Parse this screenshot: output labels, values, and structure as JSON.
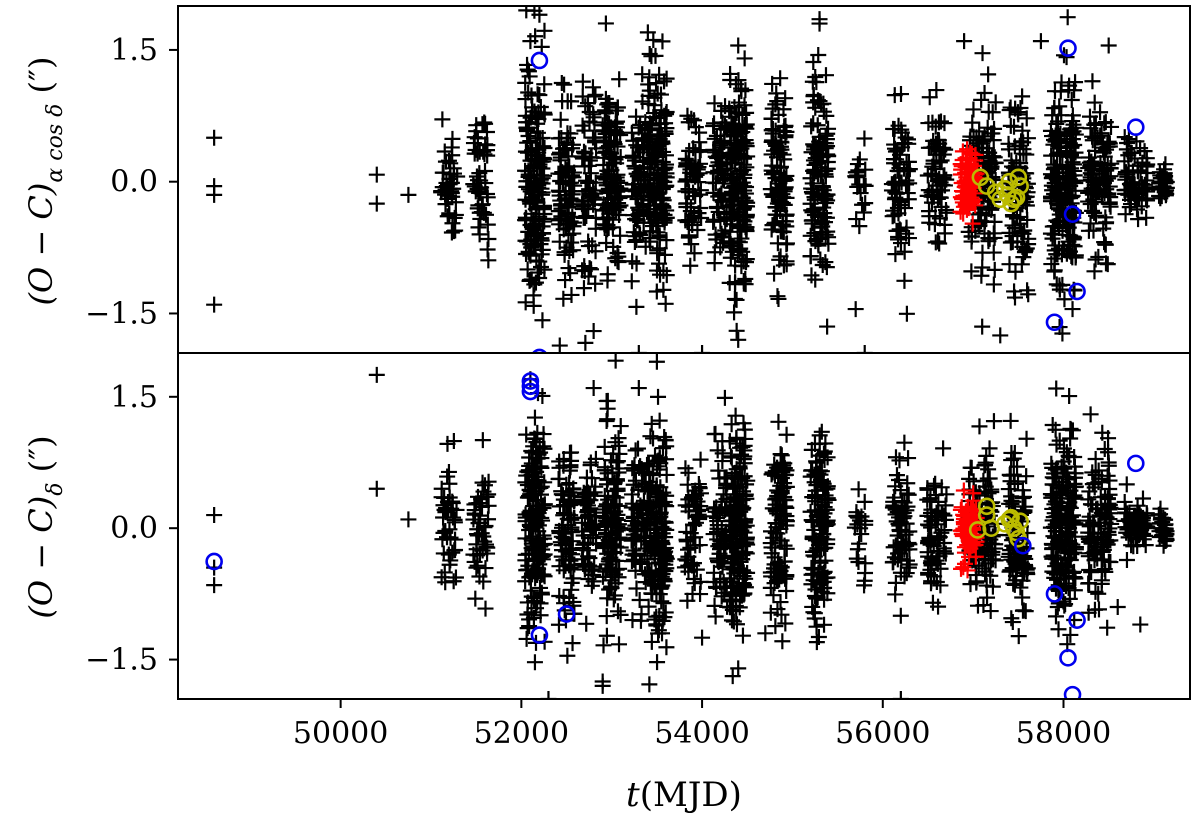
{
  "chart_data": [
    {
      "type": "scatter",
      "panel": "top",
      "ylabel": "(O − C)α cos δ (″)",
      "ylabel_parts": {
        "base": "(O − C)",
        "sub": "α cos δ",
        "unit": " (″)"
      },
      "xlim": [
        48200,
        59400
      ],
      "ylim": [
        -1.95,
        2.0
      ],
      "yticks": [
        1.5,
        0.0,
        -1.5
      ],
      "ytick_labels": [
        "1.5",
        "0.0",
        "−1.5"
      ],
      "grid": false,
      "series": [
        {
          "color": "#000000",
          "marker": "plus",
          "generator": {
            "isolated": [
              [
                48600,
                0.5
              ],
              [
                48600,
                -0.05
              ],
              [
                48600,
                -0.15
              ],
              [
                48600,
                -1.4
              ],
              [
                50400,
                0.08
              ],
              [
                50400,
                -0.25
              ],
              [
                50750,
                -0.15
              ],
              [
                55700,
                -1.45
              ],
              [
                55800,
                -1.95
              ],
              [
                52200,
                1.9
              ],
              [
                52100,
                1.6
              ],
              [
                53400,
                1.7
              ],
              [
                54400,
                1.55
              ],
              [
                55300,
                1.85
              ],
              [
                55300,
                1.8
              ],
              [
                57750,
                1.6
              ],
              [
                58500,
                1.55
              ],
              [
                56900,
                1.6
              ],
              [
                52800,
                -1.7
              ],
              [
                53300,
                -1.95
              ],
              [
                54000,
                -1.95
              ],
              [
                54400,
                -1.8
              ],
              [
                57100,
                -1.65
              ],
              [
                57300,
                -1.75
              ],
              [
                58100,
                -1.45
              ]
            ],
            "clusters": [
              {
                "x": 51200,
                "n": 45,
                "xs": 90,
                "s": 0.35
              },
              {
                "x": 51550,
                "n": 50,
                "xs": 90,
                "s": 0.45
              },
              {
                "x": 52150,
                "n": 180,
                "xs": 110,
                "s": 0.65
              },
              {
                "x": 52500,
                "n": 90,
                "xs": 90,
                "s": 0.55
              },
              {
                "x": 52750,
                "n": 70,
                "xs": 80,
                "s": 0.55
              },
              {
                "x": 53000,
                "n": 130,
                "xs": 100,
                "s": 0.55
              },
              {
                "x": 53300,
                "n": 70,
                "xs": 80,
                "s": 0.5
              },
              {
                "x": 53500,
                "n": 170,
                "xs": 110,
                "s": 0.6
              },
              {
                "x": 53900,
                "n": 60,
                "xs": 90,
                "s": 0.45
              },
              {
                "x": 54200,
                "n": 70,
                "xs": 80,
                "s": 0.5
              },
              {
                "x": 54400,
                "n": 180,
                "xs": 100,
                "s": 0.6
              },
              {
                "x": 54850,
                "n": 110,
                "xs": 90,
                "s": 0.55
              },
              {
                "x": 55300,
                "n": 130,
                "xs": 100,
                "s": 0.55
              },
              {
                "x": 55750,
                "n": 20,
                "xs": 60,
                "s": 0.3
              },
              {
                "x": 56200,
                "n": 70,
                "xs": 100,
                "s": 0.4
              },
              {
                "x": 56600,
                "n": 70,
                "xs": 110,
                "s": 0.4
              },
              {
                "x": 57100,
                "n": 130,
                "xs": 150,
                "s": 0.45
              },
              {
                "x": 57500,
                "n": 100,
                "xs": 110,
                "s": 0.5
              },
              {
                "x": 58000,
                "n": 200,
                "xs": 140,
                "s": 0.55
              },
              {
                "x": 58400,
                "n": 110,
                "xs": 130,
                "s": 0.4
              },
              {
                "x": 58800,
                "n": 70,
                "xs": 130,
                "s": 0.22
              },
              {
                "x": 59100,
                "n": 40,
                "xs": 45,
                "s": 0.1
              }
            ]
          }
        },
        {
          "color": "#ff0000",
          "marker": "plus",
          "generator": {
            "clusters": [
              {
                "x": 56950,
                "n": 80,
                "xs": 90,
                "s": 0.18
              }
            ]
          }
        },
        {
          "color": "#bbbb00",
          "marker": "circle",
          "points": [
            [
              57080,
              0.05
            ],
            [
              57150,
              -0.05
            ],
            [
              57250,
              -0.12
            ],
            [
              57350,
              -0.08
            ],
            [
              57400,
              0.0
            ],
            [
              57420,
              -0.25
            ],
            [
              57480,
              -0.18
            ],
            [
              57500,
              0.05
            ],
            [
              57450,
              -0.2
            ],
            [
              57380,
              -0.15
            ],
            [
              57520,
              -0.05
            ],
            [
              57300,
              -0.2
            ]
          ]
        },
        {
          "color": "#0000ee",
          "marker": "circle",
          "points": [
            [
              52200,
              1.38
            ],
            [
              52200,
              -2.0
            ],
            [
              57900,
              -1.6
            ],
            [
              58050,
              1.52
            ],
            [
              58100,
              -0.37
            ],
            [
              58150,
              -1.25
            ],
            [
              58800,
              0.62
            ]
          ]
        }
      ]
    },
    {
      "type": "scatter",
      "panel": "bottom",
      "ylabel": "(O − C)δ (″)",
      "ylabel_parts": {
        "base": "(O − C)",
        "sub": "δ",
        "unit": " (″)"
      },
      "xlabel": "t(MJD)",
      "xlabel_parts": {
        "italic": "t",
        "rest": "(MJD)"
      },
      "xlim": [
        48200,
        59400
      ],
      "ylim": [
        -1.95,
        2.0
      ],
      "xticks": [
        50000,
        52000,
        54000,
        56000,
        58000
      ],
      "xtick_labels": [
        "50000",
        "52000",
        "54000",
        "56000",
        "58000"
      ],
      "yticks": [
        1.5,
        0.0,
        -1.5
      ],
      "ytick_labels": [
        "1.5",
        "0.0",
        "−1.5"
      ],
      "grid": false,
      "series": [
        {
          "color": "#000000",
          "marker": "plus",
          "generator": {
            "isolated": [
              [
                48600,
                0.15
              ],
              [
                48600,
                -0.45
              ],
              [
                48600,
                -0.65
              ],
              [
                50400,
                1.75
              ],
              [
                50400,
                0.45
              ],
              [
                50750,
                0.1
              ],
              [
                55800,
                0.3
              ],
              [
                55800,
                -0.6
              ],
              [
                52100,
                1.7
              ],
              [
                52800,
                1.6
              ],
              [
                53500,
                1.9
              ],
              [
                54000,
                -1.25
              ],
              [
                54400,
                -1.6
              ],
              [
                54700,
                -1.2
              ],
              [
                52900,
                -1.8
              ],
              [
                52900,
                -1.75
              ],
              [
                52300,
                -1.95
              ],
              [
                56200,
                -1.95
              ],
              [
                53300,
                1.6
              ],
              [
                58300,
                1.3
              ],
              [
                58500,
                0.75
              ],
              [
                58700,
                0.5
              ],
              [
                58600,
                -0.9
              ],
              [
                58850,
                -1.1
              ]
            ],
            "clusters": [
              {
                "x": 51200,
                "n": 45,
                "xs": 90,
                "s": 0.35
              },
              {
                "x": 51550,
                "n": 50,
                "xs": 90,
                "s": 0.4
              },
              {
                "x": 52150,
                "n": 180,
                "xs": 110,
                "s": 0.6
              },
              {
                "x": 52500,
                "n": 90,
                "xs": 90,
                "s": 0.55
              },
              {
                "x": 52750,
                "n": 70,
                "xs": 80,
                "s": 0.45
              },
              {
                "x": 53000,
                "n": 130,
                "xs": 100,
                "s": 0.5
              },
              {
                "x": 53300,
                "n": 70,
                "xs": 80,
                "s": 0.5
              },
              {
                "x": 53500,
                "n": 170,
                "xs": 110,
                "s": 0.6
              },
              {
                "x": 53900,
                "n": 60,
                "xs": 90,
                "s": 0.4
              },
              {
                "x": 54200,
                "n": 70,
                "xs": 80,
                "s": 0.45
              },
              {
                "x": 54400,
                "n": 180,
                "xs": 100,
                "s": 0.55
              },
              {
                "x": 54850,
                "n": 110,
                "xs": 90,
                "s": 0.5
              },
              {
                "x": 55300,
                "n": 130,
                "xs": 100,
                "s": 0.55
              },
              {
                "x": 55750,
                "n": 20,
                "xs": 60,
                "s": 0.3
              },
              {
                "x": 56200,
                "n": 70,
                "xs": 100,
                "s": 0.35
              },
              {
                "x": 56600,
                "n": 70,
                "xs": 110,
                "s": 0.4
              },
              {
                "x": 57100,
                "n": 130,
                "xs": 150,
                "s": 0.45
              },
              {
                "x": 57500,
                "n": 100,
                "xs": 110,
                "s": 0.45
              },
              {
                "x": 58000,
                "n": 200,
                "xs": 140,
                "s": 0.5
              },
              {
                "x": 58400,
                "n": 110,
                "xs": 130,
                "s": 0.4
              },
              {
                "x": 58800,
                "n": 70,
                "xs": 130,
                "s": 0.12
              },
              {
                "x": 59100,
                "n": 40,
                "xs": 45,
                "s": 0.08
              }
            ]
          }
        },
        {
          "color": "#ff0000",
          "marker": "plus",
          "generator": {
            "clusters": [
              {
                "x": 56950,
                "n": 80,
                "xs": 90,
                "s": 0.18
              }
            ]
          }
        },
        {
          "color": "#bbbb00",
          "marker": "circle",
          "points": [
            [
              57050,
              -0.02
            ],
            [
              57150,
              0.15
            ],
            [
              57150,
              0.25
            ],
            [
              57200,
              0.0
            ],
            [
              57350,
              0.05
            ],
            [
              57400,
              0.1
            ],
            [
              57450,
              0.0
            ],
            [
              57480,
              -0.05
            ],
            [
              57500,
              -0.12
            ],
            [
              57420,
              0.12
            ],
            [
              57520,
              0.08
            ]
          ]
        },
        {
          "color": "#0000ee",
          "marker": "circle",
          "points": [
            [
              48600,
              -0.38
            ],
            [
              52100,
              1.68
            ],
            [
              52100,
              1.62
            ],
            [
              52100,
              1.56
            ],
            [
              52200,
              -1.22
            ],
            [
              52500,
              -0.98
            ],
            [
              57550,
              -0.2
            ],
            [
              57900,
              -0.75
            ],
            [
              58050,
              -1.48
            ],
            [
              58100,
              -1.9
            ],
            [
              58150,
              -1.05
            ],
            [
              58800,
              0.74
            ]
          ]
        }
      ]
    }
  ]
}
